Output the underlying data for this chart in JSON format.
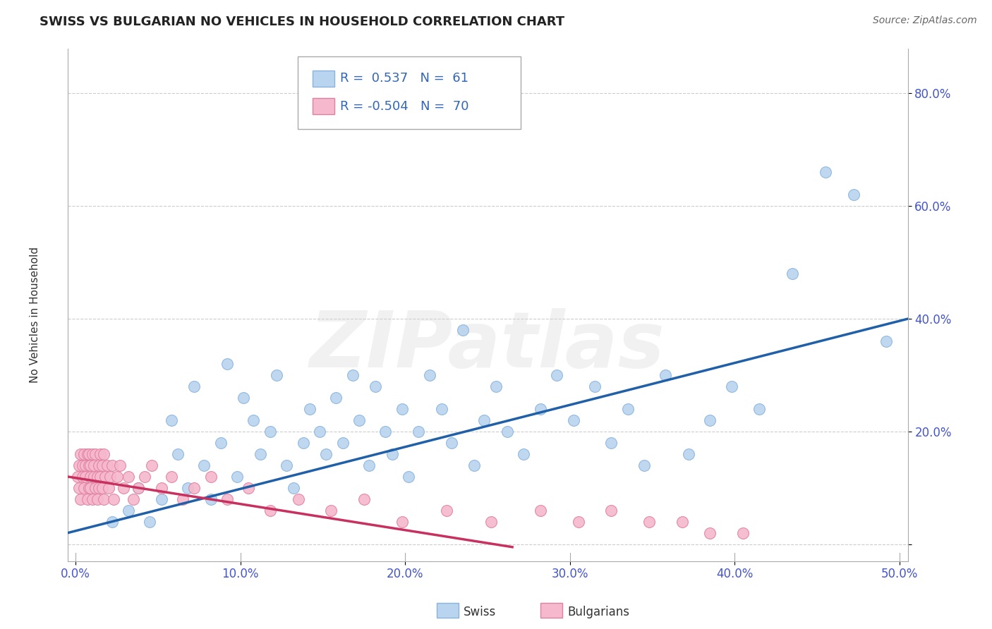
{
  "title": "SWISS VS BULGARIAN NO VEHICLES IN HOUSEHOLD CORRELATION CHART",
  "source": "Source: ZipAtlas.com",
  "ylabel": "No Vehicles in Household",
  "xlim": [
    -0.005,
    0.505
  ],
  "ylim": [
    -0.03,
    0.88
  ],
  "xticks": [
    0.0,
    0.1,
    0.2,
    0.3,
    0.4,
    0.5
  ],
  "xtick_labels": [
    "0.0%",
    "10.0%",
    "20.0%",
    "30.0%",
    "40.0%",
    "50.0%"
  ],
  "yticks": [
    0.0,
    0.2,
    0.4,
    0.6,
    0.8
  ],
  "ytick_labels": [
    "",
    "20.0%",
    "40.0%",
    "60.0%",
    "80.0%"
  ],
  "grid_color": "#cccccc",
  "background_color": "#ffffff",
  "swiss_color": "#b8d4ee",
  "swiss_edge_color": "#8ab4de",
  "bulgarian_color": "#f5b8cc",
  "bulgarian_edge_color": "#e080a0",
  "swiss_line_color": "#2060a8",
  "bulgarian_line_color": "#c83060",
  "swiss_R": 0.537,
  "swiss_N": 61,
  "bulgarian_R": -0.504,
  "bulgarian_N": 70,
  "watermark": "ZIPatlas",
  "swiss_x": [
    0.022,
    0.032,
    0.038,
    0.045,
    0.052,
    0.058,
    0.062,
    0.068,
    0.072,
    0.078,
    0.082,
    0.088,
    0.092,
    0.098,
    0.102,
    0.108,
    0.112,
    0.118,
    0.122,
    0.128,
    0.132,
    0.138,
    0.142,
    0.148,
    0.152,
    0.158,
    0.162,
    0.168,
    0.172,
    0.178,
    0.182,
    0.188,
    0.192,
    0.198,
    0.202,
    0.208,
    0.215,
    0.222,
    0.228,
    0.235,
    0.242,
    0.248,
    0.255,
    0.262,
    0.272,
    0.282,
    0.292,
    0.302,
    0.315,
    0.325,
    0.335,
    0.345,
    0.358,
    0.372,
    0.385,
    0.398,
    0.415,
    0.435,
    0.455,
    0.472,
    0.492
  ],
  "swiss_y": [
    0.04,
    0.06,
    0.1,
    0.04,
    0.08,
    0.22,
    0.16,
    0.1,
    0.28,
    0.14,
    0.08,
    0.18,
    0.32,
    0.12,
    0.26,
    0.22,
    0.16,
    0.2,
    0.3,
    0.14,
    0.1,
    0.18,
    0.24,
    0.2,
    0.16,
    0.26,
    0.18,
    0.3,
    0.22,
    0.14,
    0.28,
    0.2,
    0.16,
    0.24,
    0.12,
    0.2,
    0.3,
    0.24,
    0.18,
    0.38,
    0.14,
    0.22,
    0.28,
    0.2,
    0.16,
    0.24,
    0.3,
    0.22,
    0.28,
    0.18,
    0.24,
    0.14,
    0.3,
    0.16,
    0.22,
    0.28,
    0.24,
    0.48,
    0.66,
    0.62,
    0.36
  ],
  "bulgarian_x": [
    0.001,
    0.002,
    0.002,
    0.003,
    0.003,
    0.004,
    0.004,
    0.005,
    0.005,
    0.006,
    0.006,
    0.007,
    0.007,
    0.008,
    0.008,
    0.008,
    0.009,
    0.009,
    0.009,
    0.01,
    0.01,
    0.011,
    0.011,
    0.012,
    0.012,
    0.013,
    0.013,
    0.014,
    0.014,
    0.015,
    0.015,
    0.016,
    0.016,
    0.017,
    0.017,
    0.018,
    0.019,
    0.02,
    0.021,
    0.022,
    0.023,
    0.025,
    0.027,
    0.029,
    0.032,
    0.035,
    0.038,
    0.042,
    0.046,
    0.052,
    0.058,
    0.065,
    0.072,
    0.082,
    0.092,
    0.105,
    0.118,
    0.135,
    0.155,
    0.175,
    0.198,
    0.225,
    0.252,
    0.282,
    0.305,
    0.325,
    0.348,
    0.368,
    0.385,
    0.405
  ],
  "bulgarian_y": [
    0.12,
    0.14,
    0.1,
    0.16,
    0.08,
    0.14,
    0.12,
    0.16,
    0.1,
    0.14,
    0.12,
    0.16,
    0.08,
    0.14,
    0.1,
    0.16,
    0.12,
    0.14,
    0.1,
    0.16,
    0.08,
    0.12,
    0.14,
    0.1,
    0.16,
    0.12,
    0.08,
    0.14,
    0.1,
    0.16,
    0.12,
    0.1,
    0.14,
    0.08,
    0.16,
    0.12,
    0.14,
    0.1,
    0.12,
    0.14,
    0.08,
    0.12,
    0.14,
    0.1,
    0.12,
    0.08,
    0.1,
    0.12,
    0.14,
    0.1,
    0.12,
    0.08,
    0.1,
    0.12,
    0.08,
    0.1,
    0.06,
    0.08,
    0.06,
    0.08,
    0.04,
    0.06,
    0.04,
    0.06,
    0.04,
    0.06,
    0.04,
    0.04,
    0.02,
    0.02
  ]
}
